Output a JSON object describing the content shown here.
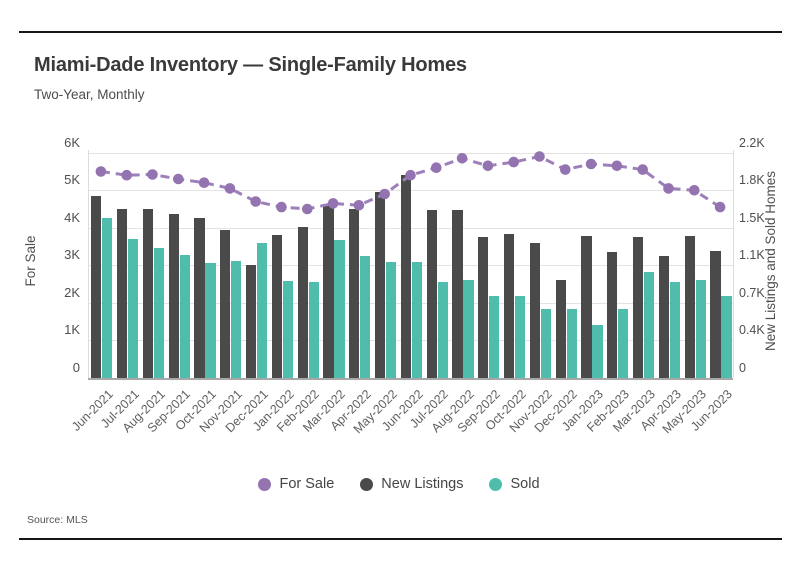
{
  "header": {
    "title": "Miami-Dade Inventory — Single-Family Homes",
    "subtitle": "Two-Year, Monthly"
  },
  "footer": {
    "source": "Source: MLS"
  },
  "chart_data": {
    "type": "bar",
    "subtype": "grouped bars with overlaid line (dual axis)",
    "categories": [
      "Jun-2021",
      "Jul-2021",
      "Aug-2021",
      "Sep-2021",
      "Oct-2021",
      "Nov-2021",
      "Dec-2021",
      "Jan-2022",
      "Feb-2022",
      "Mar-2022",
      "Apr-2022",
      "May-2022",
      "Jun-2022",
      "Jul-2022",
      "Aug-2022",
      "Sep-2022",
      "Oct-2022",
      "Nov-2022",
      "Dec-2022",
      "Jan-2023",
      "Feb-2023",
      "Mar-2023",
      "Apr-2023",
      "May-2023",
      "Jun-2023"
    ],
    "series": [
      {
        "name": "For Sale",
        "type": "line",
        "axis": "left",
        "color": "#9d7fba",
        "marker_color": "#9473b1",
        "dashed": true,
        "values": [
          5500,
          5400,
          5420,
          5300,
          5200,
          5050,
          4700,
          4550,
          4500,
          4650,
          4600,
          4900,
          5400,
          5600,
          5850,
          5650,
          5750,
          5900,
          5550,
          5700,
          5650,
          5550,
          5050,
          5000,
          4550
        ]
      },
      {
        "name": "New Listings",
        "type": "bar",
        "axis": "right",
        "color": "#4a4a4a",
        "values": [
          1775,
          1655,
          1655,
          1605,
          1560,
          1445,
          1105,
          1395,
          1475,
          1695,
          1655,
          1820,
          1985,
          1645,
          1645,
          1380,
          1410,
          1315,
          960,
          1390,
          1235,
          1380,
          1190,
          1385,
          1245
        ]
      },
      {
        "name": "Sold",
        "type": "bar",
        "axis": "right",
        "color": "#50bcab",
        "values": [
          1560,
          1355,
          1270,
          1205,
          1120,
          1145,
          1320,
          945,
          940,
          1350,
          1190,
          1135,
          1135,
          940,
          955,
          800,
          805,
          670,
          670,
          515,
          670,
          1040,
          940,
          955,
          800
        ]
      }
    ],
    "left_axis": {
      "label": "For Sale",
      "ticks": [
        "0",
        "1K",
        "2K",
        "3K",
        "4K",
        "5K",
        "6K"
      ],
      "range": [
        0,
        6000
      ],
      "grid": true
    },
    "right_axis": {
      "label": "New Listings and Sold Homes",
      "ticks": [
        "0",
        "0.4K",
        "0.7K",
        "1.1K",
        "1.5K",
        "1.8K",
        "2.2K"
      ],
      "range": [
        0,
        2200
      ]
    },
    "legend_position": "bottom-center"
  }
}
